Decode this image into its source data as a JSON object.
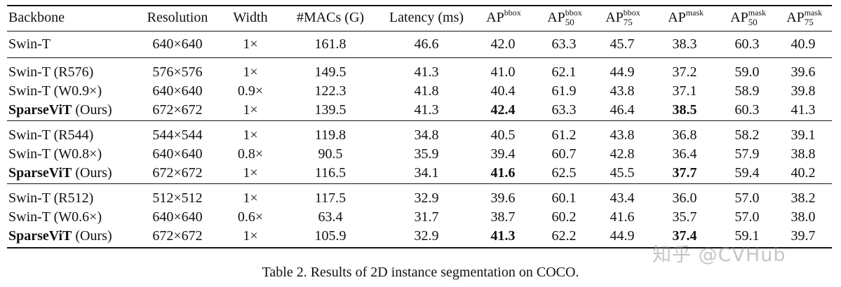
{
  "table": {
    "headers": [
      {
        "base": "Backbone"
      },
      {
        "base": "Resolution"
      },
      {
        "base": "Width"
      },
      {
        "base": "#MACs (G)"
      },
      {
        "base": "Latency (ms)"
      },
      {
        "base": "AP",
        "sup": "bbox"
      },
      {
        "base": "AP",
        "sup": "bbox",
        "sub": "50"
      },
      {
        "base": "AP",
        "sup": "bbox",
        "sub": "75"
      },
      {
        "base": "AP",
        "sup": "mask"
      },
      {
        "base": "AP",
        "sup": "mask",
        "sub": "50"
      },
      {
        "base": "AP",
        "sup": "mask",
        "sub": "75"
      }
    ],
    "groups": [
      [
        {
          "cells": [
            "Swin-T",
            "640×640",
            "1×",
            "161.8",
            "46.6",
            "42.0",
            "63.3",
            "45.7",
            "38.3",
            "60.3",
            "40.9"
          ],
          "bold": []
        }
      ],
      [
        {
          "cells": [
            "Swin-T (R576)",
            "576×576",
            "1×",
            "149.5",
            "41.3",
            "41.0",
            "62.1",
            "44.9",
            "37.2",
            "59.0",
            "39.6"
          ],
          "bold": []
        },
        {
          "cells": [
            "Swin-T (W0.9×)",
            "640×640",
            "0.9×",
            "122.3",
            "41.8",
            "40.4",
            "61.9",
            "43.8",
            "37.1",
            "58.9",
            "39.8"
          ],
          "bold": []
        },
        {
          "cells": [
            "SparseViT",
            "672×672",
            "1×",
            "139.5",
            "41.3",
            "42.4",
            "63.3",
            "46.4",
            "38.5",
            "60.3",
            "41.3"
          ],
          "suffix": " (Ours)",
          "bold": [
            0,
            5,
            8
          ]
        }
      ],
      [
        {
          "cells": [
            "Swin-T (R544)",
            "544×544",
            "1×",
            "119.8",
            "34.8",
            "40.5",
            "61.2",
            "43.8",
            "36.8",
            "58.2",
            "39.1"
          ],
          "bold": []
        },
        {
          "cells": [
            "Swin-T (W0.8×)",
            "640×640",
            "0.8×",
            "90.5",
            "35.9",
            "39.4",
            "60.7",
            "42.8",
            "36.4",
            "57.9",
            "38.8"
          ],
          "bold": []
        },
        {
          "cells": [
            "SparseViT",
            "672×672",
            "1×",
            "116.5",
            "34.1",
            "41.6",
            "62.5",
            "45.5",
            "37.7",
            "59.4",
            "40.2"
          ],
          "suffix": " (Ours)",
          "bold": [
            0,
            5,
            8
          ]
        }
      ],
      [
        {
          "cells": [
            "Swin-T (R512)",
            "512×512",
            "1×",
            "117.5",
            "32.9",
            "39.6",
            "60.1",
            "43.4",
            "36.0",
            "57.0",
            "38.2"
          ],
          "bold": []
        },
        {
          "cells": [
            "Swin-T (W0.6×)",
            "640×640",
            "0.6×",
            "63.4",
            "31.7",
            "38.7",
            "60.2",
            "41.6",
            "35.7",
            "57.0",
            "38.0"
          ],
          "bold": []
        },
        {
          "cells": [
            "SparseViT",
            "672×672",
            "1×",
            "105.9",
            "32.9",
            "41.3",
            "62.2",
            "44.9",
            "37.4",
            "59.1",
            "39.7"
          ],
          "suffix": " (Ours)",
          "bold": [
            0,
            5,
            8
          ]
        }
      ]
    ]
  },
  "caption": "Table 2. Results of 2D instance segmentation on COCO.",
  "watermark": "知乎 @CVHub"
}
